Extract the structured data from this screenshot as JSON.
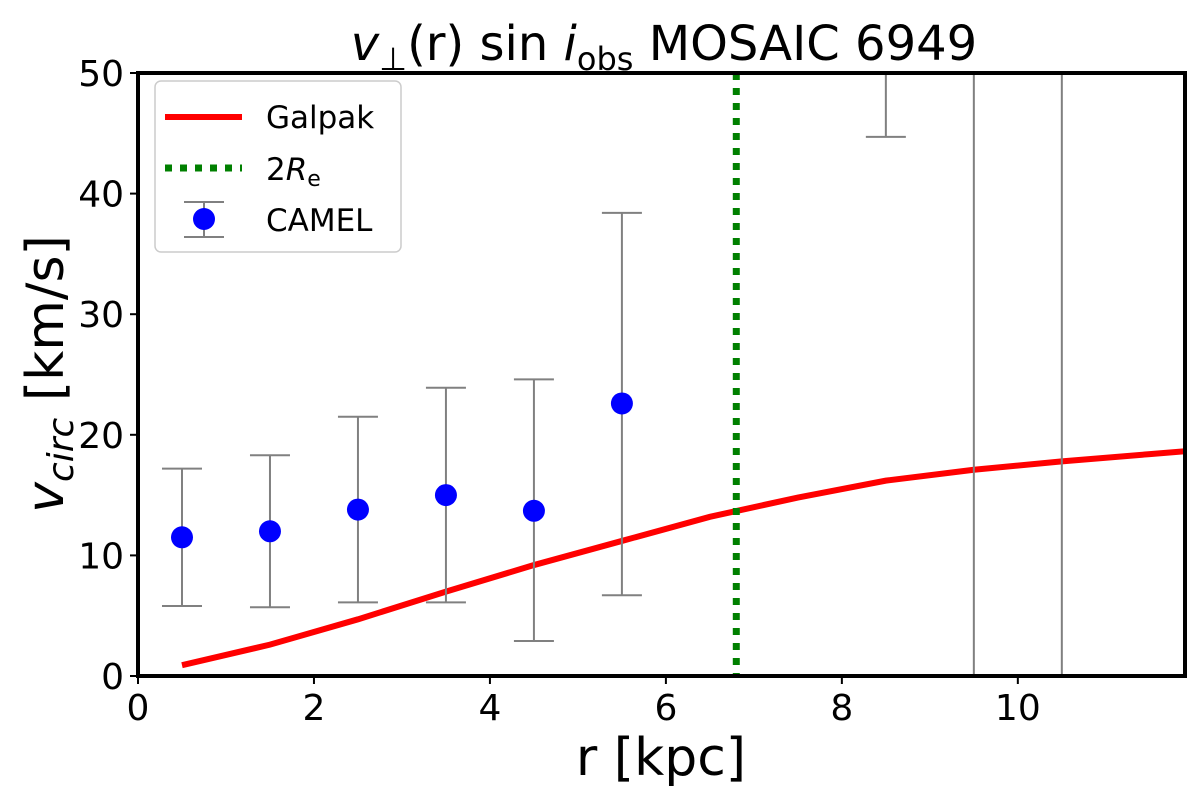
{
  "chart_data": {
    "type": "line",
    "title": "v⊥(r) sin i_obs MOSAIC 6949",
    "title_parts": {
      "v": "v",
      "perp": "⊥",
      "r": "(r)",
      "sin": " sin ",
      "i": "i",
      "obs": "obs",
      "rest": " MOSAIC 6949"
    },
    "xlabel": "r [kpc]",
    "ylabel": {
      "v": "v",
      "sub": "circ",
      "rest": " [km/s]"
    },
    "xlim": [
      0,
      11.9
    ],
    "ylim": [
      0,
      50
    ],
    "xticks": [
      0,
      2,
      4,
      6,
      8,
      10
    ],
    "yticks": [
      0,
      10,
      20,
      30,
      40,
      50
    ],
    "grid": false,
    "legend_placement": "top-left",
    "legend": {
      "galpak": "Galpak",
      "re": {
        "prefix": "2",
        "R": "R",
        "sub": "e"
      },
      "camel": "CAMEL"
    },
    "series": [
      {
        "name": "Galpak",
        "kind": "line",
        "color": "#ff0000",
        "x": [
          0.5,
          1.5,
          2.5,
          3.5,
          4.5,
          5.5,
          6.5,
          7.5,
          8.5,
          9.5,
          10.5,
          11.5,
          12.5
        ],
        "y": [
          0.9,
          2.6,
          4.7,
          7.0,
          9.2,
          11.2,
          13.2,
          14.8,
          16.2,
          17.1,
          17.8,
          18.4,
          19.0
        ]
      },
      {
        "name": "CAMEL",
        "kind": "errorbar",
        "color": "#0000ff",
        "errcolor": "#808080",
        "x": [
          0.5,
          1.5,
          2.5,
          3.5,
          4.5,
          5.5,
          8.5,
          9.5,
          10.5
        ],
        "y": [
          11.5,
          12.0,
          13.8,
          15.0,
          13.7,
          22.6,
          null,
          null,
          null
        ],
        "y_low": [
          5.8,
          5.7,
          6.1,
          6.1,
          2.9,
          6.7,
          44.7,
          -10,
          -10
        ],
        "y_high": [
          17.2,
          18.3,
          21.5,
          23.9,
          24.6,
          38.4,
          60,
          60,
          60
        ]
      },
      {
        "name": "2Re",
        "kind": "vline",
        "color": "#008000",
        "x": 6.8
      }
    ]
  }
}
